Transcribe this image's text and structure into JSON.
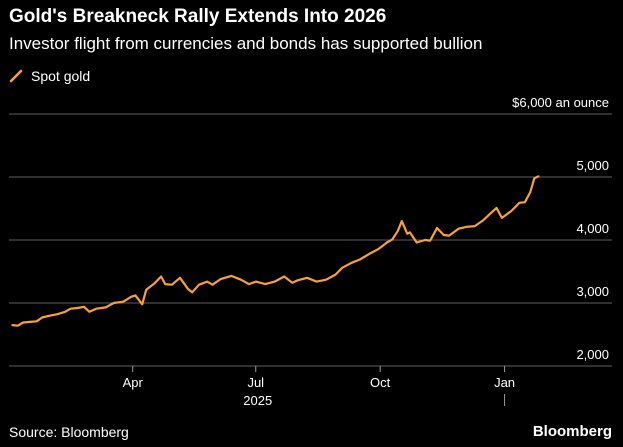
{
  "chart_data": {
    "type": "line",
    "title": "Gold's Breakneck Rally Extends Into 2026",
    "subtitle": "Investor flight from currencies and bonds has supported bullion",
    "legend": [
      {
        "label": "Spot gold",
        "color": "#f7a136"
      }
    ],
    "xlabel": "",
    "ylabel": "",
    "ylim": [
      2000,
      6000
    ],
    "y_ticks": [
      {
        "value": 6000,
        "label": "$6,000 an ounce"
      },
      {
        "value": 5000,
        "label": "5,000"
      },
      {
        "value": 4000,
        "label": "4,000"
      },
      {
        "value": 3000,
        "label": "3,000"
      },
      {
        "value": 2000,
        "label": "2,000"
      }
    ],
    "x_ticks": [
      {
        "date": "2025-04-01",
        "label": "Apr"
      },
      {
        "date": "2025-07-01",
        "label": "Jul"
      },
      {
        "date": "2025-10-01",
        "label": "Oct"
      },
      {
        "date": "2026-01-01",
        "label": "Jan"
      }
    ],
    "x_year_label": {
      "date": "2025-07-01",
      "label": "2025"
    },
    "x_range": [
      "2025-01-01",
      "2026-02-28"
    ],
    "series": [
      {
        "name": "Spot gold",
        "color": "#f7a136",
        "points": [
          [
            "2025-01-02",
            2650
          ],
          [
            "2025-01-06",
            2640
          ],
          [
            "2025-01-10",
            2690
          ],
          [
            "2025-01-15",
            2700
          ],
          [
            "2025-01-20",
            2710
          ],
          [
            "2025-01-24",
            2770
          ],
          [
            "2025-01-30",
            2800
          ],
          [
            "2025-02-04",
            2820
          ],
          [
            "2025-02-10",
            2860
          ],
          [
            "2025-02-14",
            2910
          ],
          [
            "2025-02-19",
            2920
          ],
          [
            "2025-02-24",
            2940
          ],
          [
            "2025-02-28",
            2860
          ],
          [
            "2025-03-05",
            2910
          ],
          [
            "2025-03-12",
            2930
          ],
          [
            "2025-03-18",
            3000
          ],
          [
            "2025-03-25",
            3020
          ],
          [
            "2025-03-31",
            3100
          ],
          [
            "2025-04-03",
            3120
          ],
          [
            "2025-04-08",
            2980
          ],
          [
            "2025-04-11",
            3210
          ],
          [
            "2025-04-17",
            3310
          ],
          [
            "2025-04-22",
            3420
          ],
          [
            "2025-04-25",
            3300
          ],
          [
            "2025-04-30",
            3290
          ],
          [
            "2025-05-06",
            3400
          ],
          [
            "2025-05-12",
            3220
          ],
          [
            "2025-05-15",
            3170
          ],
          [
            "2025-05-20",
            3290
          ],
          [
            "2025-05-26",
            3340
          ],
          [
            "2025-05-30",
            3290
          ],
          [
            "2025-06-05",
            3380
          ],
          [
            "2025-06-13",
            3430
          ],
          [
            "2025-06-20",
            3370
          ],
          [
            "2025-06-26",
            3300
          ],
          [
            "2025-07-01",
            3340
          ],
          [
            "2025-07-08",
            3300
          ],
          [
            "2025-07-15",
            3340
          ],
          [
            "2025-07-22",
            3420
          ],
          [
            "2025-07-28",
            3320
          ],
          [
            "2025-08-01",
            3360
          ],
          [
            "2025-08-08",
            3400
          ],
          [
            "2025-08-15",
            3340
          ],
          [
            "2025-08-22",
            3370
          ],
          [
            "2025-08-29",
            3450
          ],
          [
            "2025-09-03",
            3560
          ],
          [
            "2025-09-10",
            3640
          ],
          [
            "2025-09-16",
            3690
          ],
          [
            "2025-09-23",
            3780
          ],
          [
            "2025-09-30",
            3860
          ],
          [
            "2025-10-06",
            3960
          ],
          [
            "2025-10-10",
            4010
          ],
          [
            "2025-10-14",
            4140
          ],
          [
            "2025-10-17",
            4300
          ],
          [
            "2025-10-21",
            4100
          ],
          [
            "2025-10-23",
            4120
          ],
          [
            "2025-10-28",
            3960
          ],
          [
            "2025-11-03",
            4000
          ],
          [
            "2025-11-07",
            3990
          ],
          [
            "2025-11-12",
            4190
          ],
          [
            "2025-11-17",
            4080
          ],
          [
            "2025-11-21",
            4070
          ],
          [
            "2025-11-28",
            4180
          ],
          [
            "2025-12-04",
            4210
          ],
          [
            "2025-12-10",
            4220
          ],
          [
            "2025-12-16",
            4310
          ],
          [
            "2025-12-22",
            4430
          ],
          [
            "2025-12-26",
            4510
          ],
          [
            "2025-12-30",
            4350
          ],
          [
            "2026-01-06",
            4460
          ],
          [
            "2026-01-12",
            4590
          ],
          [
            "2026-01-16",
            4600
          ],
          [
            "2026-01-20",
            4760
          ],
          [
            "2026-01-23",
            4980
          ],
          [
            "2026-01-26",
            5010
          ]
        ]
      }
    ]
  },
  "footer": {
    "source": "Source: Bloomberg",
    "brand": "Bloomberg"
  }
}
